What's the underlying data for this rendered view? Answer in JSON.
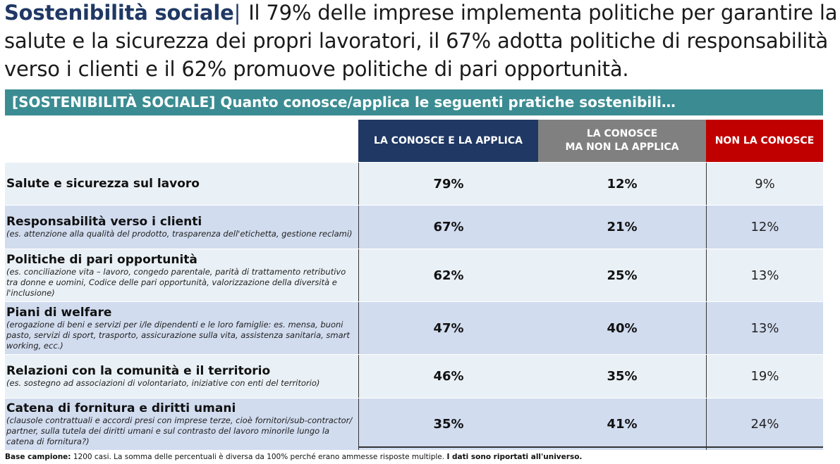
{
  "title": {
    "lead": "Sostenibilità sociale",
    "separator": "|",
    "text": " Il 79% delle imprese implementa politiche per garantire la salute e la sicurezza dei propri lavoratori, il 67% adotta politiche di responsabilità verso i clienti e il 62% promuove politiche di pari opportunità."
  },
  "banner": "[SOSTENIBILITÀ SOCIALE] Quanto conosce/applica le seguenti pratiche sostenibili…",
  "columns": {
    "c1": "LA CONOSCE E LA APPLICA",
    "c2_line1": "LA CONOSCE",
    "c2_line2": "MA NON LA APPLICA",
    "c3": "NON LA CONOSCE"
  },
  "colors": {
    "navy": "#1f3864",
    "grey": "#808080",
    "red": "#c00000",
    "teal": "#3b8c92"
  },
  "rows": [
    {
      "label": "Salute e sicurezza sul lavoro",
      "sub": "",
      "v1": "79%",
      "v2": "12%",
      "v3": "9%"
    },
    {
      "label": "Responsabilità verso i clienti",
      "sub": "(es. attenzione alla qualità del prodotto, trasparenza dell'etichetta, gestione reclami)",
      "v1": "67%",
      "v2": "21%",
      "v3": "12%"
    },
    {
      "label": "Politiche di pari opportunità",
      "sub": "(es. conciliazione vita – lavoro, congedo parentale, parità di trattamento retributivo tra donne e uomini, Codice delle pari opportunità, valorizzazione della diversità e l'inclusione)",
      "v1": "62%",
      "v2": "25%",
      "v3": "13%"
    },
    {
      "label": "Piani di welfare",
      "sub": "(erogazione di beni e servizi per i/le dipendenti e le loro famiglie: es. mensa, buoni pasto, servizi di sport, trasporto, assicurazione sulla vita, assistenza sanitaria, smart working, ecc.)",
      "v1": "47%",
      "v2": "40%",
      "v3": "13%"
    },
    {
      "label": "Relazioni con la comunità e il territorio",
      "sub": "(es. sostegno ad associazioni di volontariato, iniziative con enti del territorio)",
      "v1": "46%",
      "v2": "35%",
      "v3": "19%"
    },
    {
      "label": "Catena di fornitura e diritti umani",
      "sub": "(clausole contrattuali e accordi presi con imprese terze, cioè fornitori/sub-contractor/ partner, sulla tutela dei diritti umani e sul contrasto del lavoro minorile lungo la catena di fornitura?)",
      "v1": "35%",
      "v2": "41%",
      "v3": "24%"
    }
  ],
  "footnote": {
    "bold1": "Base campione:",
    "text": " 1200 casi. La somma delle percentuali è diversa da 100% perché erano ammesse risposte multiple. ",
    "bold2": "I dati sono riportati all'universo."
  }
}
